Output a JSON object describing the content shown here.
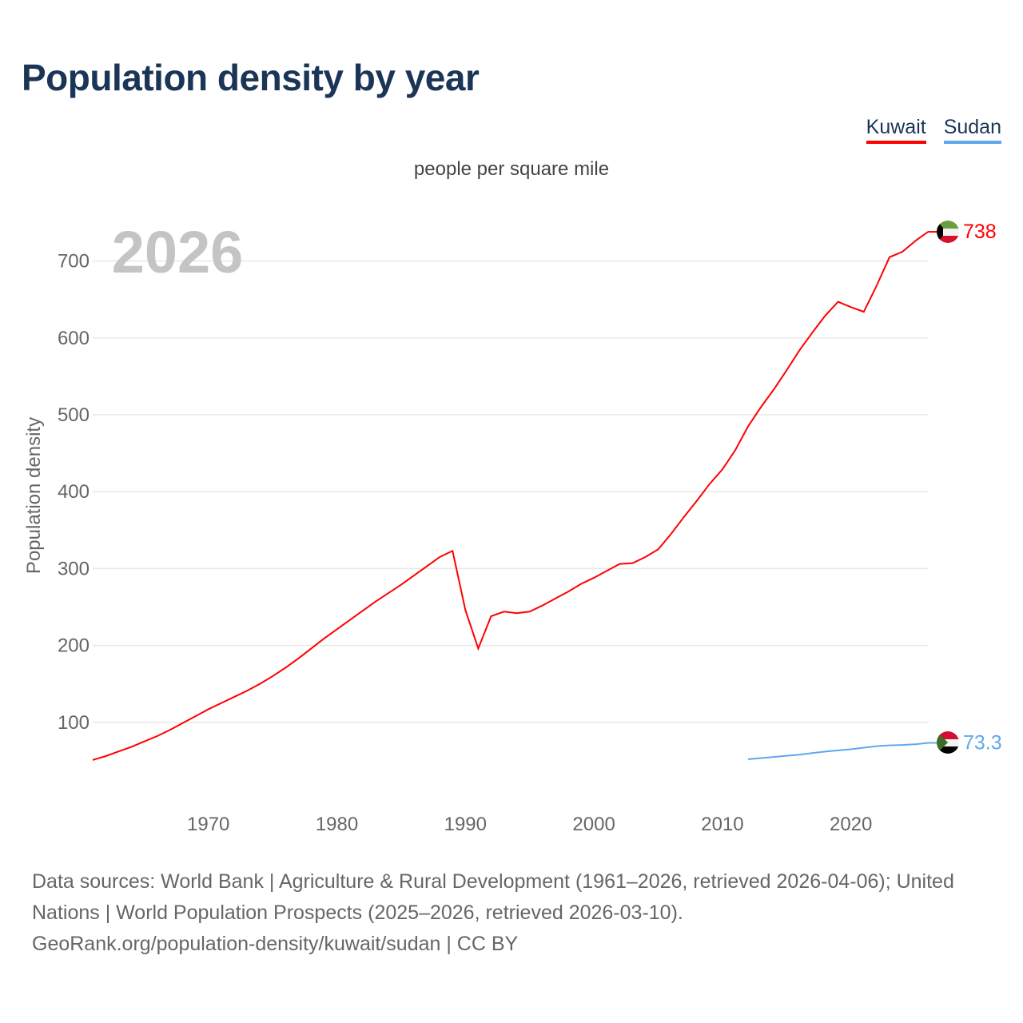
{
  "title": "Population density by year",
  "legend": [
    {
      "name": "Kuwait",
      "color": "#ff0000"
    },
    {
      "name": "Sudan",
      "color": "#5fa8ee"
    }
  ],
  "footer": {
    "line1": "Data sources: World Bank | Agriculture & Rural Development (1961–2026, retrieved 2026-04-06); United Nations | World Population Prospects (2025–2026, retrieved 2026-03-10).",
    "line2": "GeoRank.org/population-density/kuwait/sudan | CC BY"
  },
  "chart_data": {
    "type": "line",
    "title": "Population density by year",
    "subtitle": "people per square mile",
    "ylabel": "Population density",
    "xlabel": "",
    "year_watermark": "2026",
    "xlim": [
      1961,
      2026
    ],
    "ylim": [
      0,
      760
    ],
    "xticks": [
      1970,
      1980,
      1990,
      2000,
      2010,
      2020
    ],
    "yticks": [
      100,
      200,
      300,
      400,
      500,
      600,
      700
    ],
    "grid": true,
    "legend_position": "top-right",
    "series": [
      {
        "name": "Kuwait",
        "color": "#ff0000",
        "end_label": "738",
        "flag": "kuwait-flag",
        "x": [
          1961,
          1962,
          1963,
          1964,
          1965,
          1966,
          1967,
          1968,
          1969,
          1970,
          1971,
          1972,
          1973,
          1974,
          1975,
          1976,
          1977,
          1978,
          1979,
          1980,
          1981,
          1982,
          1983,
          1984,
          1985,
          1986,
          1987,
          1988,
          1989,
          1990,
          1991,
          1992,
          1993,
          1994,
          1995,
          1996,
          1997,
          1998,
          1999,
          2000,
          2001,
          2002,
          2003,
          2004,
          2005,
          2006,
          2007,
          2008,
          2009,
          2010,
          2011,
          2012,
          2013,
          2014,
          2015,
          2016,
          2017,
          2018,
          2019,
          2020,
          2021,
          2022,
          2023,
          2024,
          2025,
          2026
        ],
        "values": [
          51,
          56,
          62,
          68,
          75,
          82,
          90,
          99,
          108,
          117,
          125,
          133,
          141,
          150,
          160,
          171,
          183,
          196,
          209,
          221,
          233,
          245,
          257,
          268,
          279,
          291,
          303,
          315,
          323,
          246,
          196,
          238,
          244,
          242,
          244,
          252,
          261,
          270,
          280,
          288,
          297,
          306,
          307,
          315,
          325,
          345,
          367,
          388,
          410,
          429,
          454,
          485,
          510,
          533,
          558,
          584,
          607,
          629,
          647,
          640,
          634,
          668,
          705,
          712,
          726,
          738
        ]
      },
      {
        "name": "Sudan",
        "color": "#5fa8ee",
        "end_label": "73.3",
        "flag": "sudan-flag",
        "x": [
          2012,
          2013,
          2014,
          2015,
          2016,
          2017,
          2018,
          2019,
          2020,
          2021,
          2022,
          2023,
          2024,
          2025,
          2026
        ],
        "values": [
          52,
          53.5,
          55,
          56.5,
          58,
          60,
          62,
          63.5,
          65,
          67,
          69,
          70,
          70.5,
          71.5,
          73.3
        ]
      }
    ]
  }
}
